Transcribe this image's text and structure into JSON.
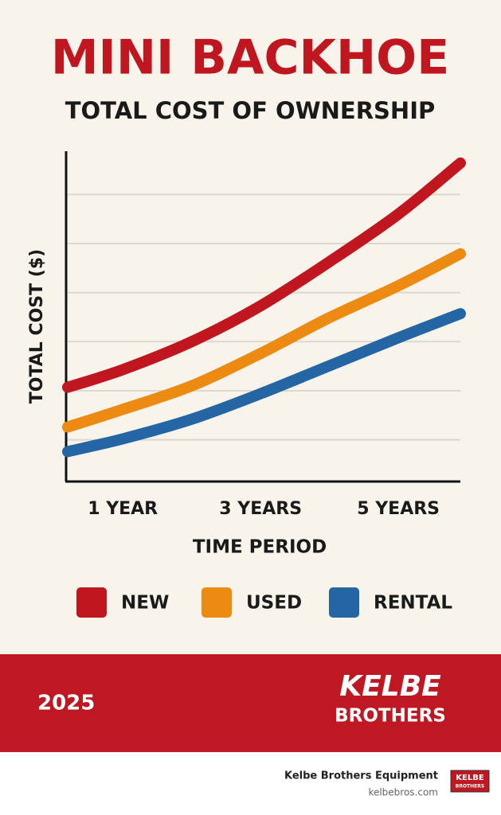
{
  "chart_data": {
    "type": "line",
    "title": "MINI BACKHOE",
    "subtitle": "TOTAL COST OF OWNERSHIP",
    "x_label": "TIME PERIOD",
    "y_label": "TOTAL COST ($)",
    "x": [
      0.2,
      1,
      2,
      3,
      4,
      5,
      5.9
    ],
    "xlim": [
      0.2,
      5.9
    ],
    "xticks": [
      {
        "value": 1,
        "label": "1 YEAR"
      },
      {
        "value": 3,
        "label": "3 YEARS"
      },
      {
        "value": 5,
        "label": "5 YEARS"
      }
    ],
    "ylim": [
      0.15,
      6.8
    ],
    "yticks": [
      1,
      2,
      3,
      4,
      5,
      6
    ],
    "grid": true,
    "legend": "bottom",
    "series": [
      {
        "name": "NEW",
        "color": "#c0161f",
        "values": [
          2.07,
          2.43,
          3.0,
          3.73,
          4.63,
          5.6,
          6.64
        ]
      },
      {
        "name": "USED",
        "color": "#ec8a12",
        "values": [
          1.26,
          1.62,
          2.1,
          2.76,
          3.49,
          4.14,
          4.79
        ]
      },
      {
        "name": "RENTAL",
        "color": "#2466a4",
        "values": [
          0.76,
          1.02,
          1.42,
          1.94,
          2.51,
          3.08,
          3.57
        ]
      }
    ]
  },
  "banner": {
    "year": "2025",
    "brand_line1": "KELBE",
    "brand_line2": "BROTHERS"
  },
  "footer": {
    "company": "Kelbe Brothers Equipment",
    "url": "kelbebros.com",
    "logo": [
      "KELBE",
      "BROTHERS"
    ]
  }
}
